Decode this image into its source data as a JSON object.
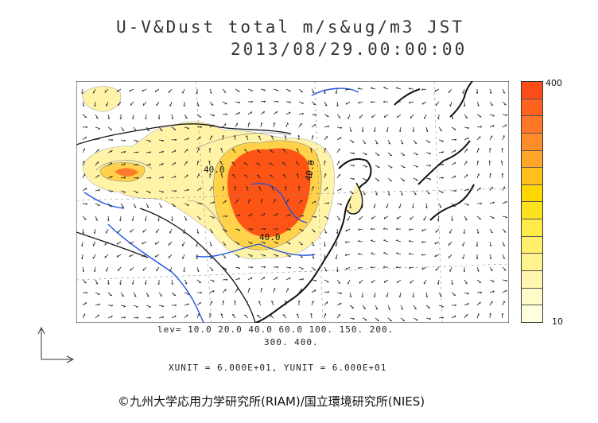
{
  "title": {
    "line1": "U-V&Dust total m/s&ug/m3 JST",
    "line2": "2013/08/29.00:00:00"
  },
  "contour_labels": [
    "40.0",
    "40.0",
    "40.0"
  ],
  "levels": {
    "line1": "lev= 10.0 20.0 40.0 60.0 100. 150. 200.",
    "line2": "300. 400."
  },
  "units": "XUNIT = 6.000E+01, YUNIT = 6.000E+01",
  "colorbar": {
    "max_label": "400",
    "min_label": "10",
    "colors": [
      "#ffffe0",
      "#fffbc8",
      "#fff7b0",
      "#fff38f",
      "#ffef6c",
      "#ffea48",
      "#ffe21e",
      "#ffd600",
      "#ffbf1c",
      "#ffa529",
      "#ff8c2a",
      "#ff7626",
      "#ff611f",
      "#ff4d18"
    ]
  },
  "legend_vector": {
    "icon": "arrow-axes-icon"
  },
  "copyright": "©九州大学応用力学研究所(RIAM)/国立環境研究所(NIES)",
  "colors": {
    "coast": "#111111",
    "rivers": "#1f55e0",
    "dust_high": "#ff5514",
    "dust_mid": "#ffd24a",
    "dust_low": "#fff3a8"
  }
}
